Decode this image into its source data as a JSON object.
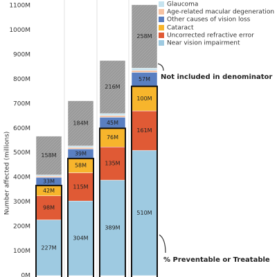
{
  "chart_data": {
    "type": "stacked_bar",
    "y_label": "Number affected (millions)",
    "categories": [
      null,
      null,
      null,
      null
    ],
    "series": [
      {
        "name": "Near vision impairment",
        "color": "#9ecae1",
        "values": [
          227,
          304,
          389,
          510
        ],
        "value_labels": [
          "227M",
          "304M",
          "389M",
          "510M"
        ]
      },
      {
        "name": "Uncorrected refractive error",
        "color": "#e05a35",
        "values": [
          98,
          115,
          135,
          161
        ],
        "value_labels": [
          "98M",
          "115M",
          "135M",
          "161M"
        ]
      },
      {
        "name": "Cataract",
        "color": "#f7b52c",
        "values": [
          42,
          58,
          76,
          100
        ],
        "value_labels": [
          "42M",
          "58M",
          "76M",
          "100M"
        ]
      },
      {
        "name": "Other causes of vision loss",
        "color": "#5a7fc1",
        "values": [
          33,
          39,
          45,
          57
        ],
        "value_labels": [
          "33M",
          "39M",
          "45M",
          "57M"
        ]
      },
      {
        "name": "Age-related macular degeneration",
        "color": "#f6c2a2",
        "values": [
          5,
          6,
          7,
          8
        ]
      },
      {
        "name": "Glaucoma",
        "color": "#c6e3ef",
        "values": [
          5,
          6,
          8,
          9
        ]
      },
      {
        "color": "#9a9a9a",
        "hatch": true,
        "values": [
          158,
          184,
          216,
          258
        ],
        "value_labels": [
          "158M",
          "184M",
          "216M",
          "258M"
        ]
      }
    ],
    "ylim": [
      0,
      1100
    ],
    "yticks": [
      {
        "value": 0,
        "label": "0M"
      },
      {
        "value": 100,
        "label": "100M"
      },
      {
        "value": 200,
        "label": "200M"
      },
      {
        "value": 300,
        "label": "300M"
      },
      {
        "value": 400,
        "label": "400M"
      },
      {
        "value": 500,
        "label": "500M"
      },
      {
        "value": 600,
        "label": "600M"
      },
      {
        "value": 700,
        "label": "700M"
      },
      {
        "value": 800,
        "label": "800M"
      },
      {
        "value": 900,
        "label": "900M"
      },
      {
        "value": 1000,
        "label": "1000M"
      },
      {
        "value": 1100,
        "label": "1100M"
      }
    ],
    "grid": false,
    "annotations": [
      "Not included in denominator",
      "% Preventable or Treatable"
    ]
  }
}
